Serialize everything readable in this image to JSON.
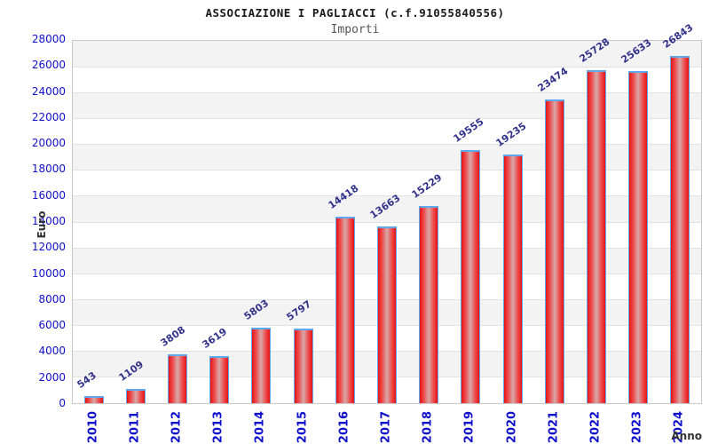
{
  "chart_data": {
    "type": "bar",
    "title": "ASSOCIAZIONE I PAGLIACCI (c.f.91055840556)",
    "subtitle": "Importi",
    "xlabel": "Anno",
    "ylabel": "Euro",
    "categories": [
      "2010",
      "2011",
      "2012",
      "2013",
      "2014",
      "2015",
      "2016",
      "2017",
      "2018",
      "2019",
      "2020",
      "2021",
      "2022",
      "2023",
      "2024"
    ],
    "values": [
      543,
      1109,
      3808,
      3619,
      5803,
      5797,
      14418,
      13663,
      15229,
      19555,
      19235,
      23474,
      25728,
      25633,
      26843
    ],
    "ylim": [
      0,
      28000
    ],
    "ytick_step": 2000,
    "yticks": [
      0,
      2000,
      4000,
      6000,
      8000,
      10000,
      12000,
      14000,
      16000,
      18000,
      20000,
      22000,
      24000,
      26000,
      28000
    ],
    "grid": "horizontal-bands",
    "legend": "none",
    "value_labels": "rotated-above-bars",
    "colors": {
      "bar_fill_edge": "#e51414",
      "bar_fill_mid": "#ef4a4a",
      "bar_fill_center": "#d8a8a8",
      "bar_border": "#5fa8f0",
      "tick_label": "#0f10cc",
      "value_label": "#32328c",
      "band_alt": "#f3f3f3",
      "band_main": "#ffffff",
      "gridline": "#e2e2e2",
      "plot_border": "#c9c9c9",
      "title": "#1a1a1a",
      "subtitle": "#555555",
      "axis_title": "#333333"
    }
  }
}
